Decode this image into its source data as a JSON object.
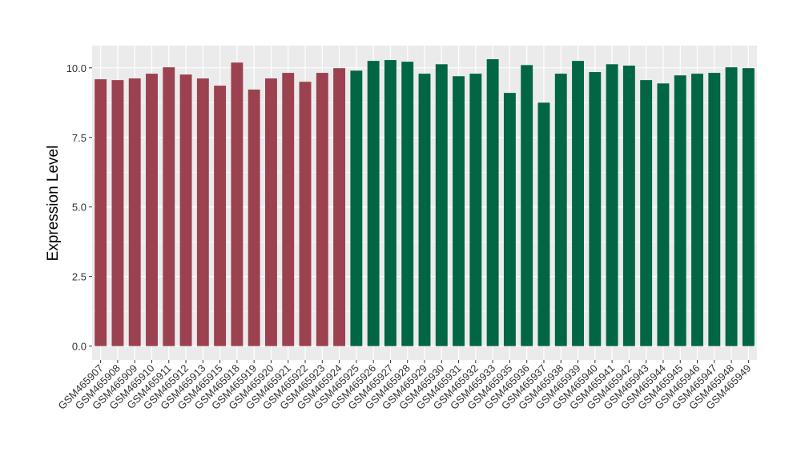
{
  "chart_data": {
    "type": "bar",
    "title": "",
    "xlabel": "",
    "ylabel": "Expression Level",
    "ylim": [
      -0.5,
      10.8
    ],
    "yticks": [
      0,
      2.5,
      5,
      7.5,
      10
    ],
    "ytick_labels": [
      "0.0",
      "2.5",
      "5.0",
      "7.5",
      "10.0"
    ],
    "grid": true,
    "legend": "none",
    "colors": {
      "group1": "#9b4150",
      "group2": "#006644",
      "panel": "#ebebeb",
      "grid": "#ffffff"
    },
    "categories": [
      "GSM465907",
      "GSM465908",
      "GSM465909",
      "GSM465910",
      "GSM465911",
      "GSM465912",
      "GSM465913",
      "GSM465915",
      "GSM465918",
      "GSM465919",
      "GSM465920",
      "GSM465921",
      "GSM465922",
      "GSM465923",
      "GSM465924",
      "GSM465925",
      "GSM465926",
      "GSM465927",
      "GSM465928",
      "GSM465929",
      "GSM465930",
      "GSM465931",
      "GSM465932",
      "GSM465933",
      "GSM465935",
      "GSM465936",
      "GSM465937",
      "GSM465938",
      "GSM465939",
      "GSM465940",
      "GSM465941",
      "GSM465942",
      "GSM465943",
      "GSM465944",
      "GSM465945",
      "GSM465946",
      "GSM465947",
      "GSM465948",
      "GSM465949"
    ],
    "values": [
      9.59,
      9.56,
      9.62,
      9.79,
      10.02,
      9.76,
      9.62,
      9.36,
      10.19,
      9.22,
      9.62,
      9.82,
      9.5,
      9.82,
      9.99,
      9.9,
      10.25,
      10.28,
      10.22,
      9.79,
      10.13,
      9.7,
      9.79,
      10.31,
      9.1,
      10.1,
      8.75,
      9.79,
      10.25,
      9.85,
      10.13,
      10.08,
      9.56,
      9.44,
      9.73,
      9.79,
      9.82,
      10.02,
      9.99
    ],
    "groups": [
      1,
      1,
      1,
      1,
      1,
      1,
      1,
      1,
      1,
      1,
      1,
      1,
      1,
      1,
      1,
      2,
      2,
      2,
      2,
      2,
      2,
      2,
      2,
      2,
      2,
      2,
      2,
      2,
      2,
      2,
      2,
      2,
      2,
      2,
      2,
      2,
      2,
      2,
      2
    ]
  }
}
